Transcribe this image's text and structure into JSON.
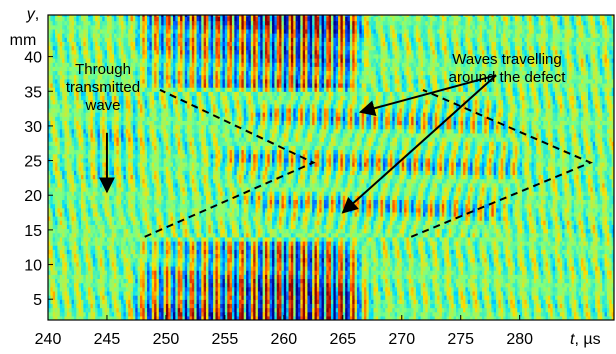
{
  "chart_data": {
    "type": "heatmap",
    "title": "",
    "x_axis": {
      "label_var": "t",
      "label_unit": ", µs",
      "range": [
        240,
        288
      ],
      "ticks": [
        "240",
        "245",
        "250",
        "255",
        "260",
        "265",
        "270",
        "275",
        "280"
      ],
      "tick_values": [
        240,
        245,
        250,
        255,
        260,
        265,
        270,
        275,
        280
      ]
    },
    "y_axis": {
      "label_var": "y",
      "label_suffix": ",",
      "label_unit": "mm",
      "range": [
        2,
        46
      ],
      "ticks": [
        "5",
        "10",
        "15",
        "20",
        "25",
        "30",
        "35",
        "40"
      ],
      "tick_values": [
        5,
        10,
        15,
        20,
        25,
        30,
        35,
        40
      ]
    },
    "colormap": [
      "#00008f",
      "#0050ff",
      "#00dfff",
      "#7fff7f",
      "#ffdf00",
      "#ff5000",
      "#8f0000"
    ],
    "defect_band_mm": [
      15,
      35
    ],
    "strong_wave_packet_us": [
      246,
      268
    ],
    "strong_band_mm": [
      [
        2,
        14
      ],
      [
        35,
        46
      ]
    ],
    "wave_period_us": 1.05,
    "dashed_paths": [
      {
        "name": "left-chevron",
        "points": [
          [
            248.2,
            14
          ],
          [
            262.5,
            24.7
          ],
          [
            249.5,
            35.2
          ]
        ]
      },
      {
        "name": "right-chevron",
        "points": [
          [
            270.8,
            14
          ],
          [
            286,
            24.7
          ],
          [
            271.8,
            35.2
          ]
        ]
      }
    ],
    "annotations": [
      {
        "id": "through",
        "lines": [
          "Through",
          "transmitted",
          "wave"
        ],
        "arrow": {
          "from": [
            245,
            29
          ],
          "to": [
            245,
            20.5
          ]
        }
      },
      {
        "id": "around",
        "lines": [
          "Waves travelling",
          "around the defect"
        ],
        "arrows": [
          {
            "from": [
              278,
              37.3
            ],
            "to": [
              266.5,
              32
            ]
          },
          {
            "from": [
              278,
              37.3
            ],
            "to": [
              265,
              17.5
            ]
          }
        ]
      }
    ]
  }
}
